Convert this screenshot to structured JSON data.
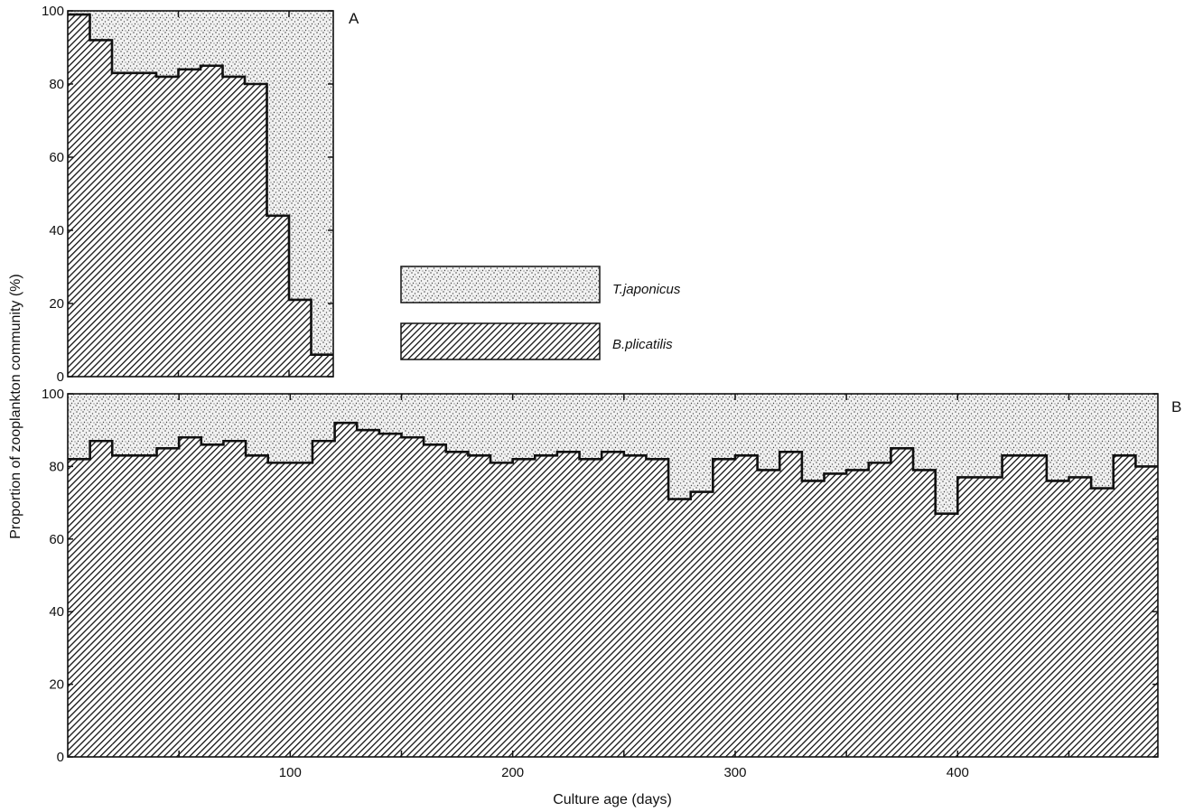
{
  "figure": {
    "ylabel": "Proportion of zooplankton community (%)",
    "xlabel": "Culture age (days)"
  },
  "legend": [
    {
      "label": "T.japonicus",
      "pattern": "stipple"
    },
    {
      "label": "B.plicatilis",
      "pattern": "hatch"
    }
  ],
  "colors": {
    "ink": "#111111",
    "background": "#ffffff",
    "stipple_bg": "#f2f2f2"
  },
  "chart_data": [
    {
      "panel": "A",
      "type": "area",
      "stacked": true,
      "step": true,
      "xlim": [
        0,
        120
      ],
      "ylim": [
        0,
        100
      ],
      "yticks": [
        0,
        20,
        40,
        60,
        80,
        100
      ],
      "xticks": [
        50,
        100
      ],
      "x_edges": [
        0,
        10,
        20,
        40,
        50,
        60,
        70,
        80,
        90,
        100,
        110,
        120
      ],
      "series": [
        {
          "name": "B.plicatilis",
          "pattern": "hatch",
          "values": [
            99,
            92,
            83,
            82,
            84,
            85,
            82,
            80,
            44,
            21,
            6
          ]
        },
        {
          "name": "T.japonicus",
          "pattern": "stipple",
          "values": [
            1,
            8,
            17,
            18,
            16,
            15,
            18,
            20,
            56,
            79,
            94
          ]
        }
      ]
    },
    {
      "panel": "B",
      "type": "area",
      "stacked": true,
      "step": true,
      "xlim": [
        0,
        490
      ],
      "ylim": [
        0,
        100
      ],
      "yticks": [
        0,
        20,
        40,
        60,
        80,
        100
      ],
      "yticklabels": [
        "0",
        "20",
        "40",
        "60",
        "80",
        "100"
      ],
      "xticks": [
        50,
        100,
        150,
        200,
        250,
        300,
        350,
        400,
        450
      ],
      "xticklabels": [
        "",
        "100",
        "",
        "200",
        "",
        "300",
        "",
        "400",
        ""
      ],
      "x_edges": [
        0,
        10,
        20,
        40,
        50,
        60,
        70,
        80,
        90,
        110,
        120,
        130,
        140,
        150,
        160,
        170,
        180,
        190,
        200,
        210,
        220,
        230,
        240,
        250,
        260,
        270,
        280,
        290,
        300,
        310,
        320,
        330,
        340,
        350,
        360,
        370,
        380,
        390,
        400,
        410,
        420,
        440,
        450,
        460,
        470,
        480,
        490
      ],
      "series": [
        {
          "name": "B.plicatilis",
          "pattern": "hatch",
          "values": [
            82,
            87,
            83,
            85,
            88,
            86,
            87,
            83,
            81,
            87,
            92,
            90,
            89,
            88,
            86,
            84,
            83,
            81,
            82,
            83,
            84,
            82,
            84,
            83,
            82,
            71,
            73,
            82,
            83,
            79,
            84,
            76,
            78,
            79,
            81,
            85,
            79,
            67,
            77,
            77,
            83,
            76,
            77,
            74,
            83,
            80
          ]
        },
        {
          "name": "T.japonicus",
          "pattern": "stipple",
          "values": [
            18,
            13,
            17,
            15,
            12,
            14,
            13,
            17,
            19,
            13,
            8,
            10,
            11,
            12,
            14,
            16,
            17,
            19,
            18,
            17,
            16,
            18,
            16,
            17,
            18,
            29,
            27,
            18,
            17,
            21,
            16,
            24,
            22,
            21,
            19,
            15,
            21,
            33,
            23,
            23,
            17,
            24,
            23,
            26,
            17,
            20
          ]
        }
      ]
    }
  ]
}
